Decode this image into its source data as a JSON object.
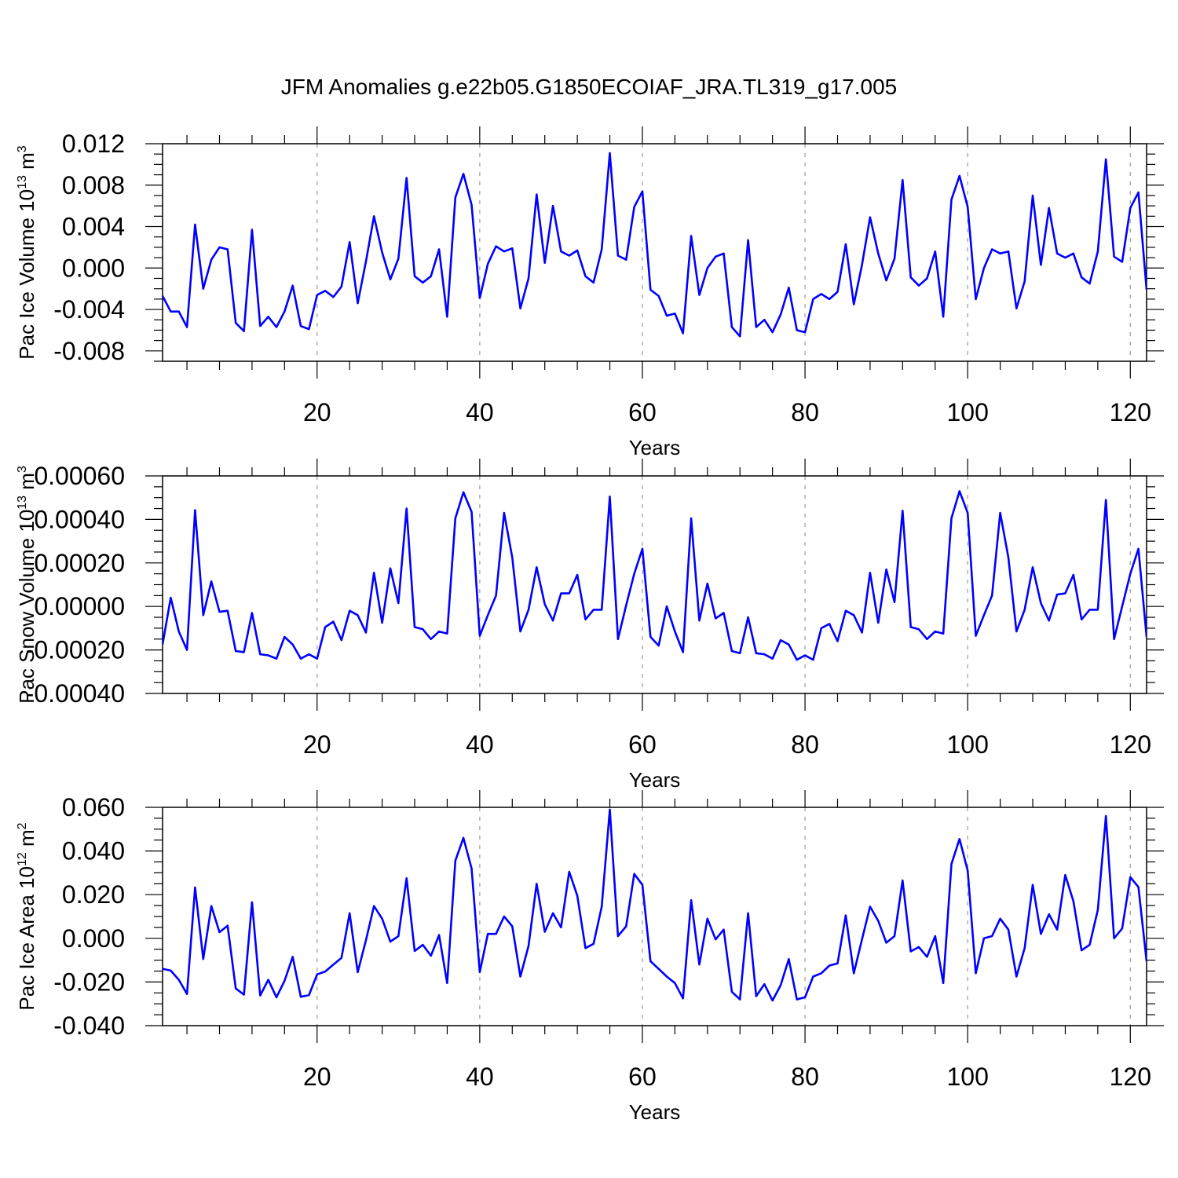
{
  "title": "JFM Anomalies g.e22b05.G1850ECOIAF_JRA.TL319_g17.005",
  "colors": {
    "series": "#0000ff",
    "axis": "#000000",
    "grid": "#a8a8a8",
    "background": "#ffffff"
  },
  "chart_data": [
    {
      "type": "line",
      "name": "pac-ice-volume",
      "title": "",
      "xlabel": "Years",
      "ylabel": {
        "base": "Pac Ice Volume 10",
        "exp": "13",
        "unit": " m",
        "unit_exp": "3"
      },
      "xlim": [
        1,
        122
      ],
      "ylim": [
        -0.009,
        0.012
      ],
      "xticks": [
        20,
        40,
        60,
        80,
        100,
        120
      ],
      "xtick_labels": [
        "20",
        "40",
        "60",
        "80",
        "100",
        "120"
      ],
      "yticks": [
        -0.008,
        -0.004,
        0.0,
        0.004,
        0.008,
        0.012
      ],
      "ytick_labels": [
        "-0.008",
        "-0.004",
        "0.000",
        "0.004",
        "0.008",
        "0.012"
      ],
      "grid_x": [
        20,
        40,
        60,
        80,
        100,
        120
      ],
      "x_start": 1,
      "values": [
        -0.0027,
        -0.0042,
        -0.0042,
        -0.0057,
        0.0042,
        -0.002,
        0.0008,
        0.002,
        0.0018,
        -0.0053,
        -0.0061,
        0.0037,
        -0.0056,
        -0.0047,
        -0.0057,
        -0.0042,
        -0.0017,
        -0.0056,
        -0.0059,
        -0.0026,
        -0.0022,
        -0.0028,
        -0.0018,
        0.0025,
        -0.0034,
        0.0006,
        0.005,
        0.0015,
        -0.0011,
        0.0009,
        0.0087,
        -0.0008,
        -0.0014,
        -0.0008,
        0.0018,
        -0.0047,
        0.0068,
        0.0091,
        0.0061,
        -0.0029,
        0.0004,
        0.0021,
        0.0016,
        0.0019,
        -0.0039,
        -0.001,
        0.0071,
        0.0005,
        0.006,
        0.0016,
        0.0012,
        0.0017,
        -0.0008,
        -0.0014,
        0.0018,
        0.0111,
        0.0012,
        0.0008,
        0.0059,
        0.0074,
        -0.0021,
        -0.0027,
        -0.0046,
        -0.0044,
        -0.0063,
        0.0031,
        -0.0026,
        0.0,
        0.0011,
        0.0014,
        -0.0057,
        -0.0066,
        0.0027,
        -0.0057,
        -0.005,
        -0.0062,
        -0.0045,
        -0.0019,
        -0.006,
        -0.0062,
        -0.003,
        -0.0025,
        -0.003,
        -0.0023,
        0.0023,
        -0.0035,
        0.0003,
        0.0049,
        0.0014,
        -0.0012,
        0.0009,
        0.0085,
        -0.0009,
        -0.0017,
        -0.001,
        0.0016,
        -0.0047,
        0.0066,
        0.0089,
        0.0059,
        -0.003,
        0.0,
        0.0018,
        0.0014,
        0.0016,
        -0.0039,
        -0.0013,
        0.007,
        0.0003,
        0.0058,
        0.0014,
        0.001,
        0.0014,
        -0.0009,
        -0.0015,
        0.0016,
        0.0105,
        0.0011,
        0.0006,
        0.0058,
        0.0073,
        -0.0021
      ]
    },
    {
      "type": "line",
      "name": "pac-snow-volume",
      "title": "",
      "xlabel": "Years",
      "ylabel": {
        "base": "Pac Snow Volume 10",
        "exp": "13",
        "unit": " m",
        "unit_exp": "3"
      },
      "xlim": [
        1,
        122
      ],
      "ylim": [
        -0.0004,
        0.0006
      ],
      "xticks": [
        20,
        40,
        60,
        80,
        100,
        120
      ],
      "xtick_labels": [
        "20",
        "40",
        "60",
        "80",
        "100",
        "120"
      ],
      "yticks": [
        -0.0004,
        -0.0002,
        0.0,
        0.0002,
        0.0004,
        0.0006
      ],
      "ytick_labels": [
        "-0.00040",
        "-0.00020",
        "0.00000",
        "0.00020",
        "0.00040",
        "0.00060"
      ],
      "grid_x": [
        20,
        40,
        60,
        80,
        100,
        120
      ],
      "x_start": 1,
      "values": [
        -0.000175,
        4e-05,
        -0.000115,
        -0.0002,
        0.000443,
        -4e-05,
        0.000115,
        -2.5e-05,
        -2e-05,
        -0.000205,
        -0.00021,
        -3e-05,
        -0.00022,
        -0.000225,
        -0.00024,
        -0.00014,
        -0.000175,
        -0.00024,
        -0.00022,
        -0.00024,
        -9.5e-05,
        -7e-05,
        -0.000155,
        -2e-05,
        -4e-05,
        -0.00012,
        0.000155,
        -7.5e-05,
        0.000175,
        1.5e-05,
        0.00045,
        -9.5e-05,
        -0.000105,
        -0.00015,
        -0.000115,
        -0.000125,
        0.000405,
        0.000525,
        0.000435,
        -0.000135,
        -4e-05,
        5e-05,
        0.00043,
        0.000225,
        -0.000115,
        -1.5e-05,
        0.00018,
        1e-05,
        -6.5e-05,
        6e-05,
        6e-05,
        0.000145,
        -6e-05,
        -1.5e-05,
        -1.5e-05,
        0.000505,
        -0.00015,
        5e-06,
        0.00015,
        0.000265,
        -0.00014,
        -0.00018,
        0.0,
        -0.000115,
        -0.00021,
        0.000405,
        -6.5e-05,
        0.000105,
        -5.5e-05,
        -3e-05,
        -0.000205,
        -0.000215,
        -5e-05,
        -0.000215,
        -0.00022,
        -0.00024,
        -0.000155,
        -0.000175,
        -0.000245,
        -0.000225,
        -0.000245,
        -0.0001,
        -8e-05,
        -0.00016,
        -2e-05,
        -4e-05,
        -0.00012,
        0.000155,
        -7.5e-05,
        0.00017,
        2e-05,
        0.00044,
        -9.5e-05,
        -0.000105,
        -0.00015,
        -0.000115,
        -0.000125,
        0.000405,
        0.00053,
        0.00043,
        -0.000135,
        -4e-05,
        5e-05,
        0.00043,
        0.000225,
        -0.000115,
        -1.5e-05,
        0.00018,
        1.5e-05,
        -6.5e-05,
        5.5e-05,
        6e-05,
        0.000145,
        -6e-05,
        -1.5e-05,
        -1.5e-05,
        0.00049,
        -0.00015,
        0.0,
        0.00015,
        0.000265,
        -0.00014
      ]
    },
    {
      "type": "line",
      "name": "pac-ice-area",
      "title": "",
      "xlabel": "Years",
      "ylabel": {
        "base": "Pac Ice Area 10",
        "exp": "12",
        "unit": " m",
        "unit_exp": "2"
      },
      "xlim": [
        1,
        122
      ],
      "ylim": [
        -0.04,
        0.06
      ],
      "xticks": [
        20,
        40,
        60,
        80,
        100,
        120
      ],
      "xtick_labels": [
        "20",
        "40",
        "60",
        "80",
        "100",
        "120"
      ],
      "yticks": [
        -0.04,
        -0.02,
        0.0,
        0.02,
        0.04,
        0.06
      ],
      "ytick_labels": [
        "-0.040",
        "-0.020",
        "0.000",
        "0.020",
        "0.040",
        "0.060"
      ],
      "grid_x": [
        20,
        40,
        60,
        80,
        100,
        120
      ],
      "x_start": 1,
      "values": [
        -0.014,
        -0.0148,
        -0.019,
        -0.0255,
        0.0233,
        -0.0095,
        0.0148,
        0.0028,
        0.0058,
        -0.023,
        -0.0258,
        0.0165,
        -0.0262,
        -0.019,
        -0.027,
        -0.0195,
        -0.0085,
        -0.0268,
        -0.026,
        -0.0165,
        -0.0152,
        -0.012,
        -0.009,
        0.0115,
        -0.0155,
        -0.001,
        0.0148,
        0.009,
        -0.0015,
        0.001,
        0.0275,
        -0.0058,
        -0.003,
        -0.008,
        0.0015,
        -0.0205,
        0.0355,
        0.046,
        0.032,
        -0.0155,
        0.002,
        0.002,
        0.01,
        0.0055,
        -0.0175,
        -0.0035,
        0.025,
        0.003,
        0.0115,
        0.005,
        0.0305,
        0.0195,
        -0.0045,
        -0.0025,
        0.0145,
        0.059,
        0.001,
        0.0055,
        0.0295,
        0.0245,
        -0.0105,
        -0.014,
        -0.0175,
        -0.0205,
        -0.0275,
        0.0175,
        -0.012,
        0.009,
        -0.0005,
        0.004,
        -0.0245,
        -0.028,
        0.0115,
        -0.0265,
        -0.021,
        -0.0285,
        -0.0215,
        -0.0095,
        -0.028,
        -0.027,
        -0.0175,
        -0.016,
        -0.0125,
        -0.0115,
        0.0105,
        -0.016,
        -0.0005,
        0.0145,
        0.008,
        -0.002,
        0.001,
        0.0265,
        -0.006,
        -0.004,
        -0.0085,
        0.001,
        -0.0205,
        0.034,
        0.0455,
        0.031,
        -0.016,
        0.0,
        0.001,
        0.009,
        0.004,
        -0.0175,
        -0.0045,
        0.0245,
        0.002,
        0.011,
        0.004,
        0.029,
        0.017,
        -0.0055,
        -0.003,
        0.013,
        0.056,
        0.0,
        0.0045,
        0.028,
        0.0235,
        -0.0105
      ]
    }
  ]
}
